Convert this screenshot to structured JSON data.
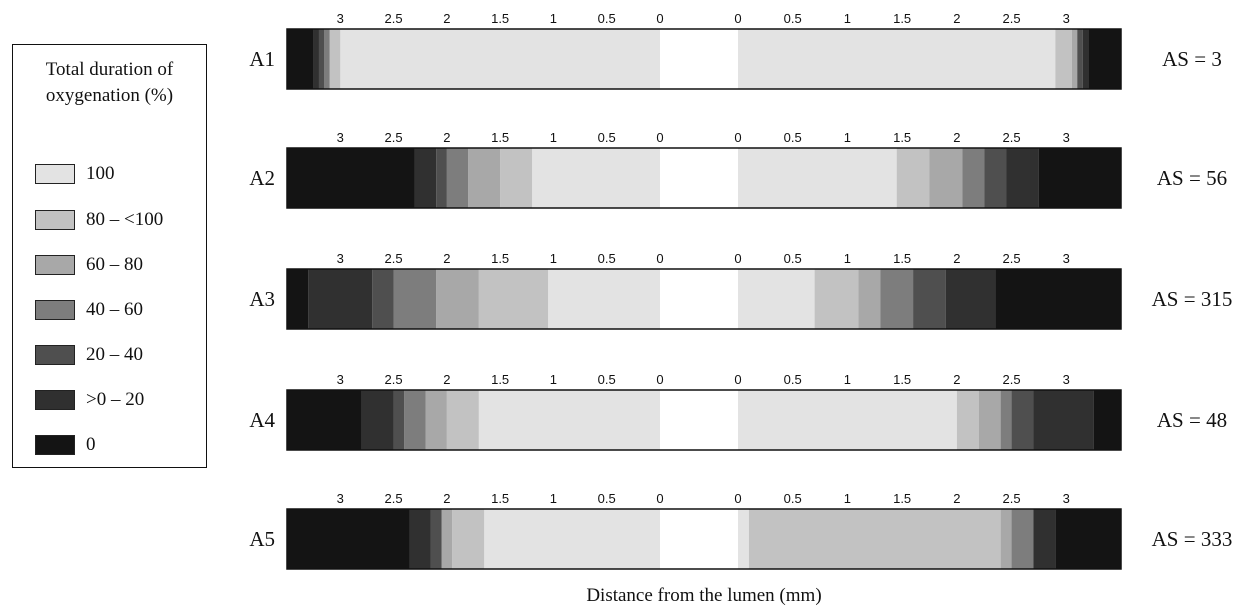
{
  "legend": {
    "title_line1": "Total duration of",
    "title_line2": "oxygenation (%)",
    "items": [
      {
        "label": "100",
        "color": "#e3e3e3"
      },
      {
        "label": "80 – <100",
        "color": "#c2c2c2"
      },
      {
        "label": "60 – 80",
        "color": "#a8a8a8"
      },
      {
        "label": "40 – 60",
        "color": "#7d7d7d"
      },
      {
        "label": "20 – 40",
        "color": "#4f4f4f"
      },
      {
        "label": ">0 – 20",
        "color": "#303030"
      },
      {
        "label": "0",
        "color": "#141414"
      }
    ]
  },
  "chart_data": {
    "type": "heatmap",
    "xlabel": "Distance from the lumen (mm)",
    "tick_labels_left": [
      "3",
      "2.5",
      "2",
      "1.5",
      "1",
      "0.5",
      "0"
    ],
    "tick_labels_right": [
      "0",
      "0.5",
      "1",
      "1.5",
      "2",
      "2.5",
      "3"
    ],
    "x_range_mm": [
      0,
      3.5
    ],
    "lumen_color": "#ffffff",
    "rows": [
      {
        "label": "A1",
        "score": "AS = 3",
        "left": [
          [
            0,
            3,
            "#e3e3e3"
          ],
          [
            3,
            3.1,
            "#c2c2c2"
          ],
          [
            3.1,
            3.15,
            "#7d7d7d"
          ],
          [
            3.15,
            3.2,
            "#4f4f4f"
          ],
          [
            3.2,
            3.25,
            "#303030"
          ],
          [
            3.25,
            3.5,
            "#141414"
          ]
        ],
        "right": [
          [
            0,
            2.9,
            "#e3e3e3"
          ],
          [
            2.9,
            3.05,
            "#c2c2c2"
          ],
          [
            3.05,
            3.1,
            "#a8a8a8"
          ],
          [
            3.1,
            3.15,
            "#4f4f4f"
          ],
          [
            3.15,
            3.2,
            "#303030"
          ],
          [
            3.2,
            3.5,
            "#141414"
          ]
        ]
      },
      {
        "label": "A2",
        "score": "AS = 56",
        "left": [
          [
            0,
            1.2,
            "#e3e3e3"
          ],
          [
            1.2,
            1.5,
            "#c2c2c2"
          ],
          [
            1.5,
            1.8,
            "#a8a8a8"
          ],
          [
            1.8,
            2,
            "#7d7d7d"
          ],
          [
            2,
            2.1,
            "#4f4f4f"
          ],
          [
            2.1,
            2.3,
            "#303030"
          ],
          [
            2.3,
            3.5,
            "#141414"
          ]
        ],
        "right": [
          [
            0,
            1.45,
            "#e3e3e3"
          ],
          [
            1.45,
            1.75,
            "#c2c2c2"
          ],
          [
            1.75,
            2.05,
            "#a8a8a8"
          ],
          [
            2.05,
            2.25,
            "#7d7d7d"
          ],
          [
            2.25,
            2.45,
            "#4f4f4f"
          ],
          [
            2.45,
            2.75,
            "#303030"
          ],
          [
            2.75,
            3.5,
            "#141414"
          ]
        ]
      },
      {
        "label": "A3",
        "score": "AS = 315",
        "left": [
          [
            0,
            1.05,
            "#e3e3e3"
          ],
          [
            1.05,
            1.7,
            "#c2c2c2"
          ],
          [
            1.7,
            2.1,
            "#a8a8a8"
          ],
          [
            2.1,
            2.5,
            "#7d7d7d"
          ],
          [
            2.5,
            2.7,
            "#4f4f4f"
          ],
          [
            2.7,
            3.3,
            "#303030"
          ],
          [
            3.3,
            3.5,
            "#141414"
          ]
        ],
        "right": [
          [
            0,
            0.7,
            "#e3e3e3"
          ],
          [
            0.7,
            1.1,
            "#c2c2c2"
          ],
          [
            1.1,
            1.3,
            "#a8a8a8"
          ],
          [
            1.3,
            1.6,
            "#7d7d7d"
          ],
          [
            1.6,
            1.9,
            "#4f4f4f"
          ],
          [
            1.9,
            2.35,
            "#303030"
          ],
          [
            2.35,
            3.5,
            "#141414"
          ]
        ]
      },
      {
        "label": "A4",
        "score": "AS = 48",
        "left": [
          [
            0,
            1.7,
            "#e3e3e3"
          ],
          [
            1.7,
            2,
            "#c2c2c2"
          ],
          [
            2,
            2.2,
            "#a8a8a8"
          ],
          [
            2.2,
            2.4,
            "#7d7d7d"
          ],
          [
            2.4,
            2.5,
            "#4f4f4f"
          ],
          [
            2.5,
            2.8,
            "#303030"
          ],
          [
            2.8,
            3.5,
            "#141414"
          ]
        ],
        "right": [
          [
            0,
            2
          ],
          [
            2,
            2.2,
            "#c2c2c2"
          ],
          [
            2.2,
            2.4,
            "#a8a8a8"
          ],
          [
            2.4,
            2.5,
            "#7d7d7d"
          ],
          [
            2.5,
            2.7,
            "#4f4f4f"
          ],
          [
            2.7,
            3.25,
            "#303030"
          ],
          [
            3.25,
            3.5,
            "#141414"
          ]
        ]
      },
      {
        "label": "A5",
        "score": "AS = 333",
        "left": [
          [
            0,
            1.65,
            "#e3e3e3"
          ],
          [
            1.65,
            1.95,
            "#c2c2c2"
          ],
          [
            1.95,
            2.05,
            "#a8a8a8"
          ],
          [
            2.05,
            2.15,
            "#4f4f4f"
          ],
          [
            2.15,
            2.35,
            "#303030"
          ],
          [
            2.35,
            3.5,
            "#141414"
          ]
        ],
        "right": [
          [
            0,
            0.1,
            "#e3e3e3"
          ],
          [
            0.1,
            2.4,
            "#c2c2c2"
          ],
          [
            2.4,
            2.5,
            "#a8a8a8"
          ],
          [
            2.5,
            2.7,
            "#7d7d7d"
          ],
          [
            2.7,
            2.9,
            "#303030"
          ],
          [
            2.9,
            3.5,
            "#141414"
          ]
        ]
      }
    ]
  }
}
